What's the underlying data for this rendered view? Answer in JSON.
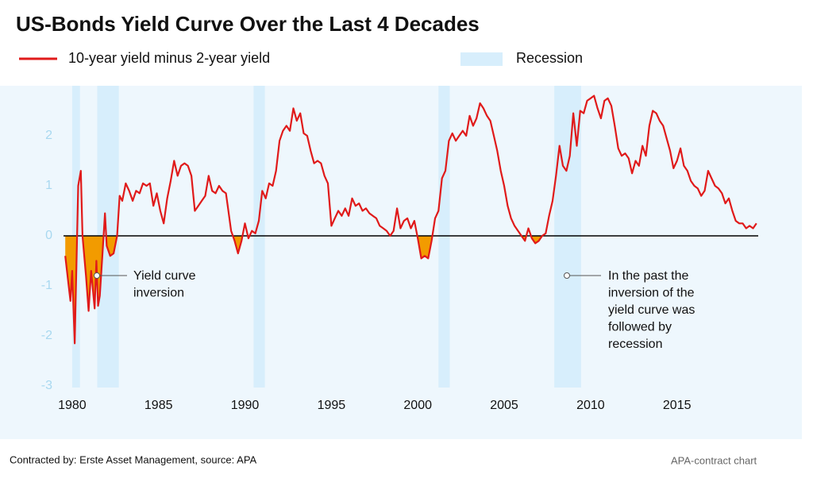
{
  "chart_data": {
    "type": "line",
    "title": "US-Bonds Yield Curve Over the Last 4 Decades",
    "xlim": [
      1979.5,
      2019.7
    ],
    "xticks": [
      1980,
      1985,
      1990,
      1995,
      2000,
      2005,
      2010,
      2015
    ],
    "ylim": [
      -3,
      3
    ],
    "yticks": [
      -3,
      -2,
      -1,
      0,
      1,
      2
    ],
    "grid": false,
    "inversion_color": "#f29b00",
    "recession_label": "Recession",
    "recession_color": "#d7eefc",
    "recessions": [
      [
        1980.0,
        1980.45
      ],
      [
        1981.45,
        1982.7
      ],
      [
        1990.5,
        1991.15
      ],
      [
        2001.2,
        2001.85
      ],
      [
        2007.9,
        2009.45
      ]
    ],
    "x": [
      1979.6,
      1979.8,
      1979.9,
      1980.0,
      1980.15,
      1980.35,
      1980.5,
      1980.6,
      1980.8,
      1980.95,
      1981.1,
      1981.3,
      1981.4,
      1981.5,
      1981.6,
      1981.8,
      1981.9,
      1982.0,
      1982.2,
      1982.4,
      1982.6,
      1982.75,
      1982.9,
      1983.1,
      1983.3,
      1983.5,
      1983.7,
      1983.9,
      1984.1,
      1984.3,
      1984.5,
      1984.7,
      1984.9,
      1985.1,
      1985.3,
      1985.5,
      1985.7,
      1985.9,
      1986.1,
      1986.3,
      1986.5,
      1986.7,
      1986.9,
      1987.1,
      1987.3,
      1987.5,
      1987.7,
      1987.9,
      1988.1,
      1988.3,
      1988.5,
      1988.7,
      1988.9,
      1989.0,
      1989.2,
      1989.4,
      1989.6,
      1989.8,
      1990.0,
      1990.2,
      1990.4,
      1990.6,
      1990.8,
      1991.0,
      1991.2,
      1991.4,
      1991.6,
      1991.8,
      1992.0,
      1992.2,
      1992.4,
      1992.6,
      1992.8,
      1993.0,
      1993.2,
      1993.4,
      1993.6,
      1993.8,
      1994.0,
      1994.2,
      1994.4,
      1994.6,
      1994.8,
      1995.0,
      1995.2,
      1995.4,
      1995.6,
      1995.8,
      1996.0,
      1996.2,
      1996.4,
      1996.6,
      1996.8,
      1997.0,
      1997.2,
      1997.4,
      1997.6,
      1997.8,
      1998.0,
      1998.2,
      1998.4,
      1998.6,
      1998.8,
      1999.0,
      1999.2,
      1999.4,
      1999.6,
      1999.8,
      2000.0,
      2000.2,
      2000.4,
      2000.6,
      2000.8,
      2001.0,
      2001.2,
      2001.4,
      2001.6,
      2001.8,
      2002.0,
      2002.2,
      2002.4,
      2002.6,
      2002.8,
      2003.0,
      2003.2,
      2003.4,
      2003.6,
      2003.8,
      2004.0,
      2004.2,
      2004.4,
      2004.6,
      2004.8,
      2005.0,
      2005.2,
      2005.4,
      2005.6,
      2005.8,
      2006.0,
      2006.2,
      2006.4,
      2006.6,
      2006.8,
      2007.0,
      2007.2,
      2007.4,
      2007.6,
      2007.8,
      2008.0,
      2008.2,
      2008.4,
      2008.6,
      2008.8,
      2009.0,
      2009.2,
      2009.4,
      2009.6,
      2009.8,
      2010.0,
      2010.2,
      2010.4,
      2010.6,
      2010.8,
      2011.0,
      2011.2,
      2011.4,
      2011.6,
      2011.8,
      2012.0,
      2012.2,
      2012.4,
      2012.6,
      2012.8,
      2013.0,
      2013.2,
      2013.4,
      2013.6,
      2013.8,
      2014.0,
      2014.2,
      2014.4,
      2014.6,
      2014.8,
      2015.0,
      2015.2,
      2015.4,
      2015.6,
      2015.8,
      2016.0,
      2016.2,
      2016.4,
      2016.6,
      2016.8,
      2017.0,
      2017.2,
      2017.4,
      2017.6,
      2017.8,
      2018.0,
      2018.2,
      2018.4,
      2018.6,
      2018.8,
      2019.0,
      2019.2,
      2019.4,
      2019.6
    ],
    "series": [
      {
        "name": "10-year yield minus 2-year yield",
        "color": "#e01a1a",
        "values": [
          -0.4,
          -1.0,
          -1.3,
          -0.7,
          -2.15,
          1.0,
          1.3,
          0.0,
          -0.8,
          -1.5,
          -0.7,
          -1.45,
          -0.5,
          -1.4,
          -1.2,
          -0.1,
          0.45,
          -0.2,
          -0.4,
          -0.35,
          0.0,
          0.8,
          0.7,
          1.05,
          0.9,
          0.7,
          0.9,
          0.85,
          1.05,
          1.0,
          1.05,
          0.6,
          0.85,
          0.5,
          0.25,
          0.75,
          1.1,
          1.5,
          1.2,
          1.4,
          1.45,
          1.4,
          1.2,
          0.5,
          0.6,
          0.7,
          0.8,
          1.2,
          0.9,
          0.85,
          1.0,
          0.9,
          0.85,
          0.6,
          0.1,
          -0.1,
          -0.35,
          -0.1,
          0.25,
          -0.05,
          0.1,
          0.05,
          0.3,
          0.9,
          0.75,
          1.05,
          1.0,
          1.3,
          1.9,
          2.1,
          2.2,
          2.1,
          2.55,
          2.3,
          2.45,
          2.05,
          2.0,
          1.7,
          1.45,
          1.5,
          1.45,
          1.2,
          1.05,
          0.2,
          0.35,
          0.5,
          0.4,
          0.55,
          0.4,
          0.75,
          0.6,
          0.65,
          0.5,
          0.55,
          0.45,
          0.4,
          0.35,
          0.2,
          0.15,
          0.1,
          0.0,
          0.1,
          0.55,
          0.15,
          0.3,
          0.35,
          0.15,
          0.3,
          -0.05,
          -0.45,
          -0.4,
          -0.45,
          -0.1,
          0.35,
          0.5,
          1.15,
          1.3,
          1.9,
          2.05,
          1.9,
          2.0,
          2.1,
          2.0,
          2.4,
          2.2,
          2.35,
          2.65,
          2.55,
          2.4,
          2.3,
          2.0,
          1.7,
          1.3,
          1.0,
          0.6,
          0.35,
          0.2,
          0.1,
          0.0,
          -0.1,
          0.15,
          -0.05,
          -0.15,
          -0.1,
          0.0,
          0.05,
          0.4,
          0.7,
          1.2,
          1.8,
          1.4,
          1.3,
          1.6,
          2.45,
          1.8,
          2.5,
          2.45,
          2.7,
          2.75,
          2.8,
          2.55,
          2.35,
          2.7,
          2.75,
          2.6,
          2.2,
          1.75,
          1.6,
          1.65,
          1.55,
          1.25,
          1.5,
          1.4,
          1.8,
          1.6,
          2.2,
          2.5,
          2.45,
          2.3,
          2.2,
          1.95,
          1.7,
          1.35,
          1.5,
          1.75,
          1.4,
          1.3,
          1.1,
          1.0,
          0.95,
          0.8,
          0.9,
          1.3,
          1.15,
          1.0,
          0.95,
          0.85,
          0.65,
          0.75,
          0.5,
          0.3,
          0.25,
          0.25,
          0.15,
          0.2,
          0.15,
          0.25
        ]
      }
    ],
    "annotations": [
      {
        "lines": [
          "Yield curve",
          "inversion"
        ]
      },
      {
        "lines": [
          "In the past the",
          "inversion of the",
          "yield curve was",
          "followed by",
          "recession"
        ]
      }
    ],
    "source": "Contracted by: Erste Asset Management, source: APA",
    "credit": "APA-contract chart"
  }
}
